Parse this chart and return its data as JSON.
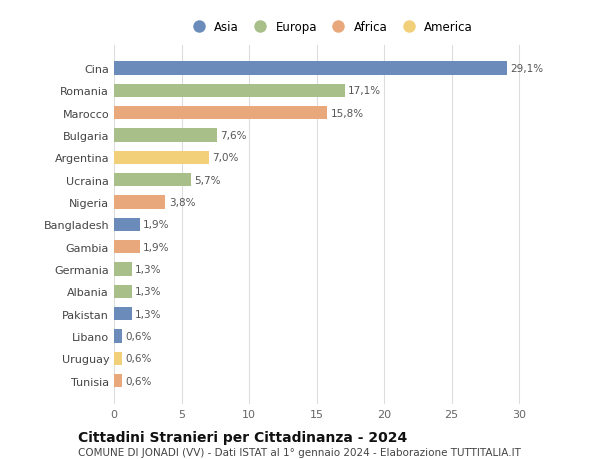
{
  "countries": [
    "Cina",
    "Romania",
    "Marocco",
    "Bulgaria",
    "Argentina",
    "Ucraina",
    "Nigeria",
    "Bangladesh",
    "Gambia",
    "Germania",
    "Albania",
    "Pakistan",
    "Libano",
    "Uruguay",
    "Tunisia"
  ],
  "values": [
    29.1,
    17.1,
    15.8,
    7.6,
    7.0,
    5.7,
    3.8,
    1.9,
    1.9,
    1.3,
    1.3,
    1.3,
    0.6,
    0.6,
    0.6
  ],
  "labels": [
    "29,1%",
    "17,1%",
    "15,8%",
    "7,6%",
    "7,0%",
    "5,7%",
    "3,8%",
    "1,9%",
    "1,9%",
    "1,3%",
    "1,3%",
    "1,3%",
    "0,6%",
    "0,6%",
    "0,6%"
  ],
  "colors": [
    "#6b8cba",
    "#a8bf8a",
    "#e8a87c",
    "#a8bf8a",
    "#f2d07a",
    "#a8bf8a",
    "#e8a87c",
    "#6b8cba",
    "#e8a87c",
    "#a8bf8a",
    "#a8bf8a",
    "#6b8cba",
    "#6b8cba",
    "#f2d07a",
    "#e8a87c"
  ],
  "legend_labels": [
    "Asia",
    "Europa",
    "Africa",
    "America"
  ],
  "legend_colors": [
    "#6b8cba",
    "#a8bf8a",
    "#e8a87c",
    "#f2d07a"
  ],
  "title": "Cittadini Stranieri per Cittadinanza - 2024",
  "subtitle": "COMUNE DI JONADI (VV) - Dati ISTAT al 1° gennaio 2024 - Elaborazione TUTTITALIA.IT",
  "xlim": [
    0,
    32
  ],
  "xticks": [
    0,
    5,
    10,
    15,
    20,
    25,
    30
  ],
  "background_color": "#ffffff",
  "grid_color": "#dddddd",
  "bar_height": 0.6,
  "title_fontsize": 10,
  "subtitle_fontsize": 7.5,
  "label_fontsize": 7.5,
  "tick_fontsize": 8,
  "legend_fontsize": 8.5
}
